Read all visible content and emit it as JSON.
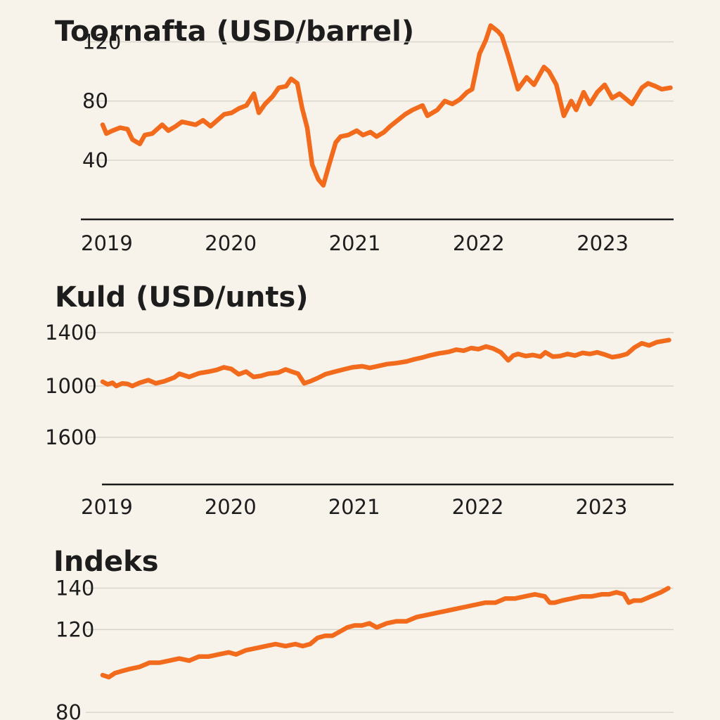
{
  "colors": {
    "background": "#f8f3ea",
    "series": "#f26b1d",
    "text": "#1d1d1d",
    "grid": "#d8d3ca",
    "axis": "#1a1a1a"
  },
  "chart_data": [
    {
      "type": "line",
      "title": "Toornafta (USD/barrel)",
      "xlabel": "",
      "ylabel": "",
      "grid": true,
      "xlim": [
        2019.0,
        2023.6
      ],
      "ylim": [
        0,
        135
      ],
      "yticks": [
        {
          "value": 120,
          "label": "120"
        },
        {
          "value": 80,
          "label": "80"
        },
        {
          "value": 40,
          "label": "40"
        }
      ],
      "xticks": [
        {
          "value": 2019.0,
          "label": "2019"
        },
        {
          "value": 2020.0,
          "label": "2020"
        },
        {
          "value": 2021.0,
          "label": "2021"
        },
        {
          "value": 2022.0,
          "label": "2022"
        },
        {
          "value": 2023.0,
          "label": "2023"
        }
      ],
      "series": [
        {
          "values": [
            [
              2019.0,
              64
            ],
            [
              2019.03,
              58
            ],
            [
              2019.08,
              60
            ],
            [
              2019.14,
              62
            ],
            [
              2019.2,
              61
            ],
            [
              2019.24,
              54
            ],
            [
              2019.3,
              51
            ],
            [
              2019.34,
              57
            ],
            [
              2019.4,
              58
            ],
            [
              2019.48,
              64
            ],
            [
              2019.53,
              60
            ],
            [
              2019.59,
              63
            ],
            [
              2019.64,
              66
            ],
            [
              2019.75,
              64
            ],
            [
              2019.81,
              67
            ],
            [
              2019.87,
              63
            ],
            [
              2019.98,
              71
            ],
            [
              2020.04,
              72
            ],
            [
              2020.1,
              75
            ],
            [
              2020.16,
              77
            ],
            [
              2020.22,
              85
            ],
            [
              2020.26,
              72
            ],
            [
              2020.31,
              78
            ],
            [
              2020.37,
              83
            ],
            [
              2020.42,
              89
            ],
            [
              2020.48,
              90
            ],
            [
              2020.52,
              95
            ],
            [
              2020.57,
              92
            ],
            [
              2020.61,
              75
            ],
            [
              2020.65,
              62
            ],
            [
              2020.69,
              37
            ],
            [
              2020.74,
              27
            ],
            [
              2020.78,
              23
            ],
            [
              2020.82,
              35
            ],
            [
              2020.88,
              52
            ],
            [
              2020.92,
              56
            ],
            [
              2020.98,
              57
            ],
            [
              2021.05,
              60
            ],
            [
              2021.1,
              57
            ],
            [
              2021.16,
              59
            ],
            [
              2021.21,
              56
            ],
            [
              2021.27,
              59
            ],
            [
              2021.32,
              63
            ],
            [
              2021.38,
              67
            ],
            [
              2021.44,
              71
            ],
            [
              2021.5,
              74
            ],
            [
              2021.58,
              77
            ],
            [
              2021.62,
              70
            ],
            [
              2021.7,
              74
            ],
            [
              2021.76,
              80
            ],
            [
              2021.82,
              78
            ],
            [
              2021.88,
              81
            ],
            [
              2021.94,
              86
            ],
            [
              2021.98,
              88
            ],
            [
              2022.04,
              112
            ],
            [
              2022.09,
              121
            ],
            [
              2022.13,
              131
            ],
            [
              2022.19,
              127
            ],
            [
              2022.22,
              124
            ],
            [
              2022.27,
              111
            ],
            [
              2022.35,
              88
            ],
            [
              2022.42,
              96
            ],
            [
              2022.48,
              91
            ],
            [
              2022.56,
              103
            ],
            [
              2022.6,
              100
            ],
            [
              2022.66,
              91
            ],
            [
              2022.72,
              70
            ],
            [
              2022.78,
              80
            ],
            [
              2022.82,
              74
            ],
            [
              2022.88,
              86
            ],
            [
              2022.93,
              78
            ],
            [
              2022.99,
              86
            ],
            [
              2023.05,
              91
            ],
            [
              2023.11,
              82
            ],
            [
              2023.17,
              85
            ],
            [
              2023.27,
              78
            ],
            [
              2023.35,
              89
            ],
            [
              2023.4,
              92
            ],
            [
              2023.46,
              90
            ],
            [
              2023.51,
              88
            ],
            [
              2023.58,
              89
            ]
          ]
        }
      ]
    },
    {
      "type": "line",
      "title": "Kuld (USD/unts)",
      "xlabel": "",
      "ylabel": "",
      "grid": true,
      "xlim": [
        2019.0,
        2023.6
      ],
      "yticks": [
        {
          "label": "1400"
        },
        {
          "label": "1000"
        },
        {
          "label": "1600"
        }
      ],
      "xticks": [
        {
          "value": 2019.0,
          "label": "2019"
        },
        {
          "value": 2020.0,
          "label": "2020"
        },
        {
          "value": 2021.0,
          "label": "2021"
        },
        {
          "value": 2022.0,
          "label": "2022"
        },
        {
          "value": 2023.0,
          "label": "2023"
        }
      ],
      "note_y": "Tick labels printed out of order; series plotted on a relative scale where 0 = '1000' gridline and 1 = '1400' gridline.",
      "series": [
        {
          "values": [
            [
              2019.0,
              0.08
            ],
            [
              2019.04,
              0.03
            ],
            [
              2019.08,
              0.06
            ],
            [
              2019.11,
              0.0
            ],
            [
              2019.16,
              0.05
            ],
            [
              2019.2,
              0.04
            ],
            [
              2019.24,
              0.0
            ],
            [
              2019.3,
              0.06
            ],
            [
              2019.37,
              0.11
            ],
            [
              2019.43,
              0.05
            ],
            [
              2019.5,
              0.09
            ],
            [
              2019.58,
              0.16
            ],
            [
              2019.62,
              0.23
            ],
            [
              2019.7,
              0.17
            ],
            [
              2019.78,
              0.24
            ],
            [
              2019.86,
              0.27
            ],
            [
              2019.92,
              0.3
            ],
            [
              2019.98,
              0.35
            ],
            [
              2020.04,
              0.32
            ],
            [
              2020.1,
              0.22
            ],
            [
              2020.16,
              0.27
            ],
            [
              2020.22,
              0.17
            ],
            [
              2020.28,
              0.19
            ],
            [
              2020.34,
              0.23
            ],
            [
              2020.42,
              0.25
            ],
            [
              2020.48,
              0.31
            ],
            [
              2020.54,
              0.26
            ],
            [
              2020.58,
              0.23
            ],
            [
              2020.63,
              0.05
            ],
            [
              2020.68,
              0.09
            ],
            [
              2020.74,
              0.15
            ],
            [
              2020.8,
              0.22
            ],
            [
              2020.88,
              0.27
            ],
            [
              2020.95,
              0.31
            ],
            [
              2021.02,
              0.35
            ],
            [
              2021.1,
              0.37
            ],
            [
              2021.16,
              0.34
            ],
            [
              2021.22,
              0.37
            ],
            [
              2021.3,
              0.41
            ],
            [
              2021.38,
              0.43
            ],
            [
              2021.46,
              0.46
            ],
            [
              2021.52,
              0.5
            ],
            [
              2021.58,
              0.53
            ],
            [
              2021.64,
              0.57
            ],
            [
              2021.72,
              0.61
            ],
            [
              2021.8,
              0.64
            ],
            [
              2021.86,
              0.68
            ],
            [
              2021.92,
              0.66
            ],
            [
              2021.98,
              0.71
            ],
            [
              2022.04,
              0.69
            ],
            [
              2022.1,
              0.74
            ],
            [
              2022.16,
              0.7
            ],
            [
              2022.22,
              0.63
            ],
            [
              2022.28,
              0.48
            ],
            [
              2022.32,
              0.57
            ],
            [
              2022.36,
              0.6
            ],
            [
              2022.42,
              0.56
            ],
            [
              2022.48,
              0.58
            ],
            [
              2022.54,
              0.55
            ],
            [
              2022.58,
              0.63
            ],
            [
              2022.64,
              0.55
            ],
            [
              2022.7,
              0.56
            ],
            [
              2022.76,
              0.6
            ],
            [
              2022.82,
              0.57
            ],
            [
              2022.88,
              0.62
            ],
            [
              2022.94,
              0.6
            ],
            [
              2023.0,
              0.63
            ],
            [
              2023.06,
              0.59
            ],
            [
              2023.12,
              0.54
            ],
            [
              2023.18,
              0.56
            ],
            [
              2023.24,
              0.6
            ],
            [
              2023.3,
              0.72
            ],
            [
              2023.36,
              0.8
            ],
            [
              2023.42,
              0.76
            ],
            [
              2023.48,
              0.82
            ],
            [
              2023.58,
              0.86
            ]
          ]
        }
      ]
    },
    {
      "type": "line",
      "title": "Indeks",
      "xlabel": "",
      "ylabel": "",
      "grid": true,
      "xlim": [
        2019.0,
        2023.6
      ],
      "ylim": [
        76,
        150
      ],
      "yticks": [
        {
          "value": 140,
          "label": "140"
        },
        {
          "value": 120,
          "label": "120"
        },
        {
          "value": 80,
          "label": "80"
        }
      ],
      "series": [
        {
          "values": [
            [
              2019.0,
              98
            ],
            [
              2019.05,
              97
            ],
            [
              2019.1,
              99
            ],
            [
              2019.16,
              100
            ],
            [
              2019.22,
              101
            ],
            [
              2019.3,
              102
            ],
            [
              2019.38,
              104
            ],
            [
              2019.46,
              104
            ],
            [
              2019.54,
              105
            ],
            [
              2019.62,
              106
            ],
            [
              2019.7,
              105
            ],
            [
              2019.78,
              107
            ],
            [
              2019.86,
              107
            ],
            [
              2019.94,
              108
            ],
            [
              2020.02,
              109
            ],
            [
              2020.08,
              108
            ],
            [
              2020.16,
              110
            ],
            [
              2020.24,
              111
            ],
            [
              2020.32,
              112
            ],
            [
              2020.4,
              113
            ],
            [
              2020.48,
              112
            ],
            [
              2020.56,
              113
            ],
            [
              2020.62,
              112
            ],
            [
              2020.68,
              113
            ],
            [
              2020.74,
              116
            ],
            [
              2020.8,
              117
            ],
            [
              2020.86,
              117
            ],
            [
              2020.92,
              119
            ],
            [
              2020.98,
              121
            ],
            [
              2021.04,
              122
            ],
            [
              2021.1,
              122
            ],
            [
              2021.16,
              123
            ],
            [
              2021.22,
              121
            ],
            [
              2021.3,
              123
            ],
            [
              2021.38,
              124
            ],
            [
              2021.46,
              124
            ],
            [
              2021.54,
              126
            ],
            [
              2021.62,
              127
            ],
            [
              2021.7,
              128
            ],
            [
              2021.78,
              129
            ],
            [
              2021.86,
              130
            ],
            [
              2021.94,
              131
            ],
            [
              2022.02,
              132
            ],
            [
              2022.1,
              133
            ],
            [
              2022.18,
              133
            ],
            [
              2022.26,
              135
            ],
            [
              2022.34,
              135
            ],
            [
              2022.42,
              136
            ],
            [
              2022.5,
              137
            ],
            [
              2022.58,
              136
            ],
            [
              2022.62,
              133
            ],
            [
              2022.66,
              133
            ],
            [
              2022.72,
              134
            ],
            [
              2022.8,
              135
            ],
            [
              2022.88,
              136
            ],
            [
              2022.96,
              136
            ],
            [
              2023.04,
              137
            ],
            [
              2023.1,
              137
            ],
            [
              2023.16,
              138
            ],
            [
              2023.22,
              137
            ],
            [
              2023.26,
              133
            ],
            [
              2023.3,
              134
            ],
            [
              2023.36,
              134
            ],
            [
              2023.44,
              136
            ],
            [
              2023.52,
              138
            ],
            [
              2023.58,
              140
            ]
          ]
        }
      ]
    }
  ]
}
